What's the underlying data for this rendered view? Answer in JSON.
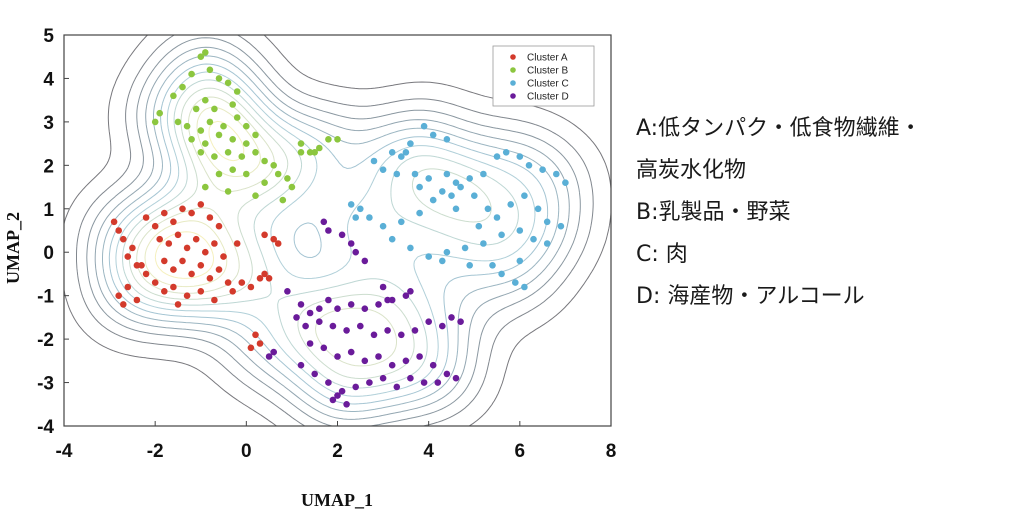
{
  "chart_data": {
    "type": "scatter",
    "xlabel": "UMAP_1",
    "ylabel": "UMAP_2",
    "xlim": [
      -4,
      8
    ],
    "ylim": [
      -4,
      5
    ],
    "xticks": [
      -4,
      -2,
      0,
      2,
      4,
      6,
      8
    ],
    "yticks": [
      -4,
      -3,
      -2,
      -1,
      0,
      1,
      2,
      3,
      4,
      5
    ],
    "legend_position": "top-right",
    "density_contours": true,
    "series": [
      {
        "name": "Cluster A",
        "color": "#d33a2c",
        "points": [
          [
            -2.9,
            0.7
          ],
          [
            -2.8,
            0.5
          ],
          [
            -2.7,
            0.3
          ],
          [
            -2.5,
            0.1
          ],
          [
            -2.6,
            -0.1
          ],
          [
            -2.4,
            -0.3
          ],
          [
            -2.2,
            0.8
          ],
          [
            -2.0,
            0.6
          ],
          [
            -1.8,
            0.9
          ],
          [
            -1.6,
            0.7
          ],
          [
            -1.4,
            1.0
          ],
          [
            -1.2,
            0.9
          ],
          [
            -1.0,
            1.1
          ],
          [
            -0.8,
            0.8
          ],
          [
            -0.6,
            0.6
          ],
          [
            -1.9,
            0.3
          ],
          [
            -1.7,
            0.2
          ],
          [
            -1.5,
            0.4
          ],
          [
            -1.3,
            0.1
          ],
          [
            -1.1,
            0.3
          ],
          [
            -0.9,
            0.0
          ],
          [
            -0.7,
            0.2
          ],
          [
            -0.5,
            -0.1
          ],
          [
            -1.8,
            -0.2
          ],
          [
            -1.6,
            -0.4
          ],
          [
            -1.4,
            -0.2
          ],
          [
            -1.2,
            -0.5
          ],
          [
            -1.0,
            -0.3
          ],
          [
            -0.8,
            -0.6
          ],
          [
            -0.6,
            -0.4
          ],
          [
            -0.4,
            -0.7
          ],
          [
            -2.2,
            -0.5
          ],
          [
            -2.0,
            -0.7
          ],
          [
            -1.8,
            -0.9
          ],
          [
            -1.6,
            -0.8
          ],
          [
            -1.3,
            -1.0
          ],
          [
            -1.0,
            -0.9
          ],
          [
            -0.7,
            -1.1
          ],
          [
            -2.6,
            -0.8
          ],
          [
            -2.8,
            -1.0
          ],
          [
            -2.7,
            -1.2
          ],
          [
            -2.4,
            -1.1
          ],
          [
            -0.3,
            -0.9
          ],
          [
            -0.1,
            -0.7
          ],
          [
            0.1,
            -0.8
          ],
          [
            0.3,
            -0.6
          ],
          [
            0.4,
            -0.5
          ],
          [
            0.5,
            -0.6
          ],
          [
            0.4,
            0.4
          ],
          [
            0.6,
            0.3
          ],
          [
            0.7,
            0.2
          ],
          [
            0.2,
            -1.9
          ],
          [
            0.1,
            -2.2
          ],
          [
            0.3,
            -2.1
          ],
          [
            -1.5,
            -1.2
          ],
          [
            -2.3,
            -0.3
          ],
          [
            -0.2,
            0.2
          ]
        ]
      },
      {
        "name": "Cluster B",
        "color": "#8cc63f",
        "points": [
          [
            -0.9,
            4.6
          ],
          [
            -1.0,
            4.5
          ],
          [
            -0.8,
            4.2
          ],
          [
            -1.2,
            4.1
          ],
          [
            -0.6,
            4.0
          ],
          [
            -0.4,
            3.9
          ],
          [
            -1.4,
            3.8
          ],
          [
            -0.2,
            3.7
          ],
          [
            -1.6,
            3.6
          ],
          [
            -0.9,
            3.5
          ],
          [
            -1.1,
            3.3
          ],
          [
            -0.7,
            3.3
          ],
          [
            -0.3,
            3.4
          ],
          [
            -1.9,
            3.2
          ],
          [
            -2.0,
            3.0
          ],
          [
            -1.5,
            3.0
          ],
          [
            -1.3,
            2.9
          ],
          [
            -1.0,
            2.8
          ],
          [
            -0.8,
            3.0
          ],
          [
            -0.5,
            2.9
          ],
          [
            -0.2,
            3.1
          ],
          [
            0.0,
            2.9
          ],
          [
            -1.2,
            2.6
          ],
          [
            -0.9,
            2.5
          ],
          [
            -0.6,
            2.7
          ],
          [
            -0.3,
            2.6
          ],
          [
            0.0,
            2.5
          ],
          [
            0.2,
            2.7
          ],
          [
            -1.0,
            2.3
          ],
          [
            -0.7,
            2.2
          ],
          [
            -0.4,
            2.3
          ],
          [
            -0.1,
            2.2
          ],
          [
            0.2,
            2.3
          ],
          [
            0.4,
            2.1
          ],
          [
            0.6,
            2.0
          ],
          [
            -0.6,
            1.8
          ],
          [
            -0.3,
            1.9
          ],
          [
            0.0,
            1.8
          ],
          [
            0.4,
            1.6
          ],
          [
            0.7,
            1.8
          ],
          [
            0.9,
            1.7
          ],
          [
            1.0,
            1.5
          ],
          [
            1.2,
            2.5
          ],
          [
            1.4,
            2.3
          ],
          [
            1.6,
            2.4
          ],
          [
            1.5,
            2.3
          ],
          [
            -0.9,
            1.5
          ],
          [
            -0.4,
            1.4
          ],
          [
            0.2,
            1.3
          ],
          [
            0.8,
            1.2
          ],
          [
            1.2,
            2.3
          ],
          [
            1.8,
            2.6
          ],
          [
            2.0,
            2.6
          ]
        ]
      },
      {
        "name": "Cluster C",
        "color": "#5aafd6",
        "points": [
          [
            3.9,
            2.9
          ],
          [
            4.1,
            2.7
          ],
          [
            3.6,
            2.5
          ],
          [
            3.2,
            2.3
          ],
          [
            3.4,
            2.2
          ],
          [
            2.8,
            2.1
          ],
          [
            3.0,
            1.9
          ],
          [
            3.3,
            1.8
          ],
          [
            3.7,
            1.8
          ],
          [
            4.0,
            1.7
          ],
          [
            4.4,
            1.8
          ],
          [
            4.6,
            1.6
          ],
          [
            4.9,
            1.7
          ],
          [
            5.2,
            1.8
          ],
          [
            5.5,
            2.2
          ],
          [
            5.7,
            2.3
          ],
          [
            6.0,
            2.2
          ],
          [
            6.2,
            2.0
          ],
          [
            6.5,
            1.9
          ],
          [
            6.8,
            1.8
          ],
          [
            7.0,
            1.6
          ],
          [
            2.3,
            1.1
          ],
          [
            2.5,
            1.0
          ],
          [
            2.7,
            0.8
          ],
          [
            3.0,
            0.6
          ],
          [
            3.4,
            0.7
          ],
          [
            3.8,
            0.9
          ],
          [
            4.1,
            1.2
          ],
          [
            4.3,
            1.4
          ],
          [
            4.5,
            1.3
          ],
          [
            4.7,
            1.5
          ],
          [
            5.0,
            1.3
          ],
          [
            5.3,
            1.0
          ],
          [
            5.5,
            0.8
          ],
          [
            5.8,
            1.1
          ],
          [
            6.1,
            1.3
          ],
          [
            6.4,
            1.0
          ],
          [
            6.6,
            0.7
          ],
          [
            6.9,
            0.6
          ],
          [
            3.2,
            0.3
          ],
          [
            3.6,
            0.1
          ],
          [
            4.0,
            -0.1
          ],
          [
            4.4,
            0.0
          ],
          [
            4.8,
            0.1
          ],
          [
            5.2,
            0.2
          ],
          [
            5.6,
            0.4
          ],
          [
            6.0,
            0.5
          ],
          [
            6.3,
            0.3
          ],
          [
            6.6,
            0.2
          ],
          [
            4.3,
            -0.2
          ],
          [
            5.4,
            -0.3
          ],
          [
            6.0,
            -0.2
          ],
          [
            3.8,
            1.5
          ],
          [
            4.6,
            1.0
          ],
          [
            5.1,
            0.6
          ],
          [
            2.4,
            0.8
          ],
          [
            5.6,
            -0.5
          ],
          [
            5.9,
            -0.7
          ],
          [
            6.1,
            -0.8
          ],
          [
            4.9,
            -0.3
          ],
          [
            3.5,
            2.3
          ],
          [
            4.4,
            2.6
          ]
        ]
      },
      {
        "name": "Cluster D",
        "color": "#6a1b9a",
        "points": [
          [
            1.7,
            0.7
          ],
          [
            1.8,
            0.5
          ],
          [
            2.1,
            0.4
          ],
          [
            2.3,
            0.2
          ],
          [
            2.4,
            0.0
          ],
          [
            2.6,
            -0.2
          ],
          [
            0.9,
            -0.9
          ],
          [
            1.2,
            -1.2
          ],
          [
            1.4,
            -1.4
          ],
          [
            1.6,
            -1.3
          ],
          [
            1.8,
            -1.1
          ],
          [
            2.0,
            -1.3
          ],
          [
            2.3,
            -1.2
          ],
          [
            2.6,
            -1.3
          ],
          [
            2.9,
            -1.2
          ],
          [
            3.2,
            -1.1
          ],
          [
            3.5,
            -1.0
          ],
          [
            3.0,
            -0.8
          ],
          [
            1.1,
            -1.5
          ],
          [
            1.3,
            -1.7
          ],
          [
            1.6,
            -1.6
          ],
          [
            1.9,
            -1.7
          ],
          [
            2.2,
            -1.8
          ],
          [
            2.5,
            -1.7
          ],
          [
            2.8,
            -1.9
          ],
          [
            3.1,
            -1.8
          ],
          [
            3.4,
            -1.9
          ],
          [
            3.7,
            -1.8
          ],
          [
            4.0,
            -1.6
          ],
          [
            4.3,
            -1.7
          ],
          [
            4.5,
            -1.5
          ],
          [
            4.7,
            -1.6
          ],
          [
            1.4,
            -2.1
          ],
          [
            1.7,
            -2.2
          ],
          [
            2.0,
            -2.4
          ],
          [
            2.3,
            -2.3
          ],
          [
            2.6,
            -2.5
          ],
          [
            2.9,
            -2.4
          ],
          [
            3.2,
            -2.6
          ],
          [
            3.5,
            -2.5
          ],
          [
            3.8,
            -2.4
          ],
          [
            4.1,
            -2.6
          ],
          [
            4.4,
            -2.8
          ],
          [
            4.6,
            -2.9
          ],
          [
            1.2,
            -2.6
          ],
          [
            1.5,
            -2.8
          ],
          [
            1.8,
            -3.0
          ],
          [
            2.1,
            -3.2
          ],
          [
            2.4,
            -3.1
          ],
          [
            2.7,
            -3.0
          ],
          [
            3.0,
            -2.9
          ],
          [
            3.3,
            -3.1
          ],
          [
            3.6,
            -2.9
          ],
          [
            3.9,
            -3.0
          ],
          [
            4.2,
            -3.0
          ],
          [
            1.9,
            -3.4
          ],
          [
            2.2,
            -3.5
          ],
          [
            2.0,
            -3.3
          ],
          [
            0.5,
            -2.4
          ],
          [
            0.6,
            -2.3
          ],
          [
            3.1,
            -1.1
          ],
          [
            3.6,
            -0.9
          ]
        ]
      }
    ]
  },
  "notes": [
    "A:低タンパク・低食物繊維・",
    "高炭水化物",
    "B:乳製品・野菜",
    "C: 肉",
    "D: 海産物・アルコール"
  ]
}
